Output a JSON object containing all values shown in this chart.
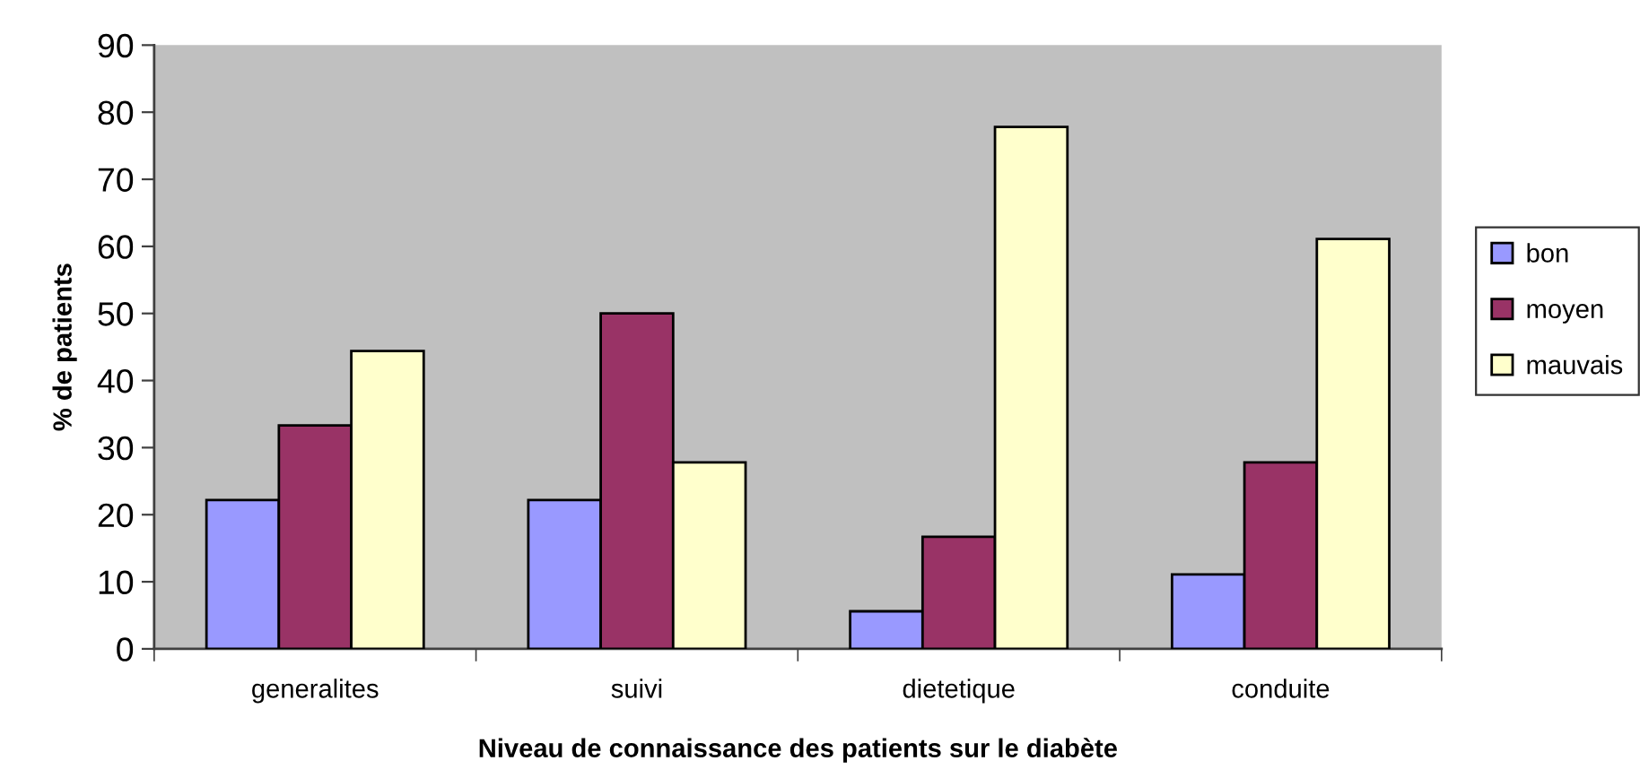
{
  "chart_data": {
    "type": "bar",
    "xlabel": "Niveau de connaissance des patients sur le diabète",
    "ylabel": "% de patients",
    "categories": [
      "generalites",
      "suivi",
      "dietetique",
      "conduite"
    ],
    "series": [
      {
        "name": "bon",
        "color": "#9999ff",
        "values": [
          22.2,
          22.2,
          5.6,
          11.1
        ]
      },
      {
        "name": "moyen",
        "color": "#993366",
        "values": [
          33.3,
          50.0,
          16.7,
          27.8
        ]
      },
      {
        "name": "mauvais",
        "color": "#ffffcc",
        "values": [
          44.4,
          27.8,
          77.8,
          61.1
        ]
      }
    ],
    "ylim": [
      0,
      90
    ],
    "yticks": [
      0,
      10,
      20,
      30,
      40,
      50,
      60,
      70,
      80,
      90
    ],
    "grid": false,
    "legend": "right"
  }
}
